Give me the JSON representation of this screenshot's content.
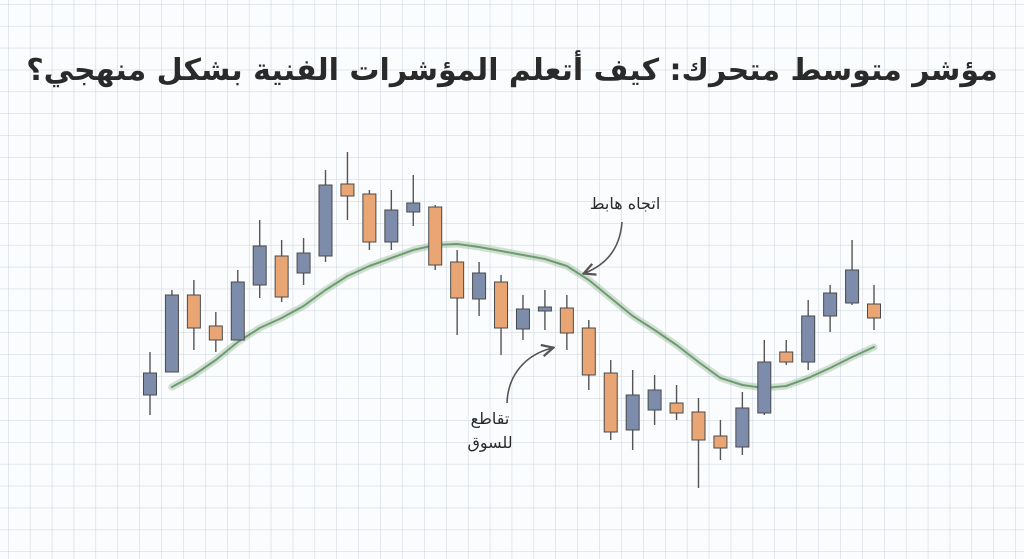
{
  "chart_data": {
    "type": "candlestick",
    "title": "مؤشر متوسط متحرك: كيف أتعلم المؤشرات الفنية بشكل منهجي؟",
    "open": [
      105,
      128,
      205,
      174,
      160,
      215,
      244,
      227,
      244,
      316,
      306,
      258,
      288,
      293,
      238,
      201,
      218,
      171,
      189,
      192,
      172,
      127,
      70,
      90,
      97,
      88,
      64,
      53,
      87,
      148,
      138,
      184,
      197,
      196
    ],
    "high": [
      148,
      210,
      220,
      188,
      230,
      280,
      260,
      262,
      330,
      348,
      310,
      310,
      325,
      295,
      250,
      238,
      225,
      205,
      210,
      205,
      180,
      140,
      130,
      125,
      115,
      102,
      80,
      108,
      160,
      160,
      200,
      215,
      260,
      215
    ],
    "low": [
      85,
      130,
      150,
      148,
      160,
      202,
      198,
      215,
      238,
      280,
      250,
      250,
      274,
      230,
      165,
      184,
      145,
      160,
      170,
      150,
      110,
      60,
      50,
      75,
      80,
      12,
      40,
      45,
      85,
      135,
      130,
      168,
      195,
      170
    ],
    "close": [
      127,
      205,
      172,
      160,
      218,
      254,
      203,
      247,
      315,
      304,
      258,
      290,
      297,
      235,
      202,
      227,
      172,
      191,
      193,
      167,
      125,
      68,
      105,
      110,
      87,
      60,
      52,
      92,
      138,
      138,
      184,
      207,
      230,
      182
    ],
    "up_color": "#7d8cab",
    "down_color": "#e9a674",
    "moving_average": {
      "color": "#6c9c70",
      "values": [
        null,
        113,
        125,
        140,
        158,
        172,
        182,
        194,
        210,
        224,
        234,
        242,
        250,
        255,
        256,
        253,
        249,
        245,
        241,
        234,
        220,
        202,
        184,
        170,
        155,
        138,
        122,
        115,
        112,
        114,
        122,
        132,
        143,
        153
      ]
    },
    "annotations": {
      "trend": "اتجاه هابط",
      "cross": [
        "تقاطع",
        "للسوق"
      ]
    }
  }
}
